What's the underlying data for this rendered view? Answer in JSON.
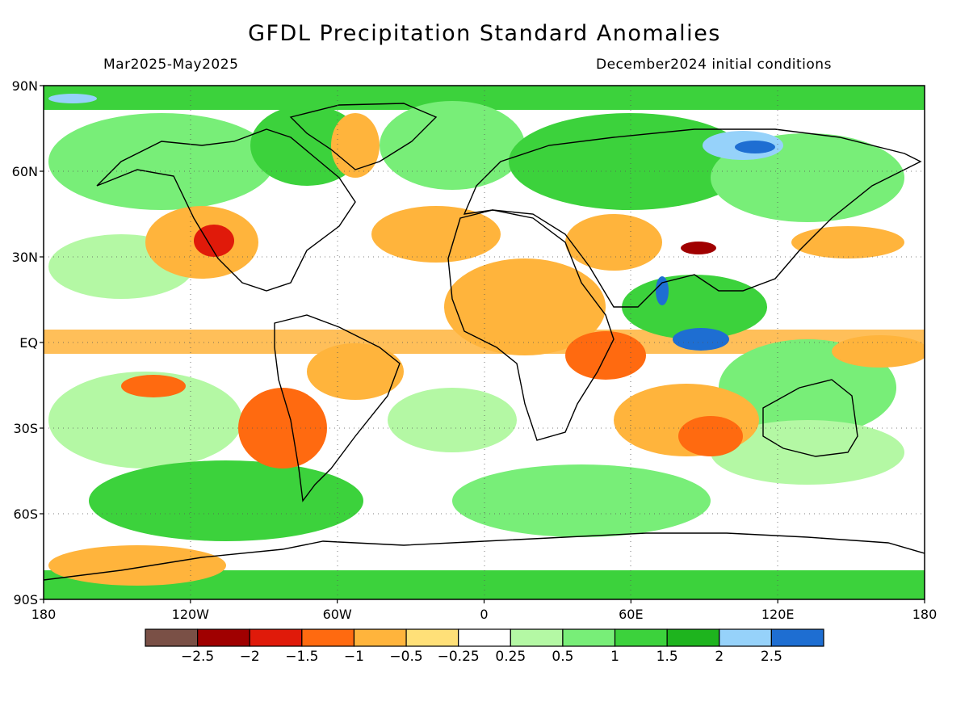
{
  "header": {
    "title": "GFDL Precipitation Standard Anomalies",
    "period": "Mar2025-May2025",
    "initial_conditions": "December2024 initial conditions"
  },
  "map": {
    "projection": "equirectangular",
    "variable": "precipitation standard anomaly",
    "lat_ticks": [
      "90N",
      "60N",
      "30N",
      "EQ",
      "30S",
      "60S",
      "90S"
    ],
    "lat_tick_values": [
      90,
      60,
      30,
      0,
      -30,
      -60,
      -90
    ],
    "lon_ticks": [
      "180",
      "120W",
      "60W",
      "0",
      "60E",
      "120E",
      "180"
    ],
    "lon_tick_values": [
      -180,
      -120,
      -60,
      0,
      60,
      120,
      180
    ],
    "background_color": "#ffffff",
    "coastline_color": "#000000"
  },
  "colorbar": {
    "colors": [
      "#7a5046",
      "#a00000",
      "#e01a0a",
      "#ff6a10",
      "#ffb43c",
      "#ffe078",
      "#ffffff",
      "#b4f8a4",
      "#78ee78",
      "#3cd23c",
      "#1eb41e",
      "#96d2fa",
      "#1e6ed2"
    ],
    "labels": [
      "-2.5",
      "-2",
      "-1.5",
      "-1",
      "-0.5",
      "-0.25",
      "0.25",
      "0.5",
      "1",
      "1.5",
      "2",
      "2.5"
    ]
  }
}
